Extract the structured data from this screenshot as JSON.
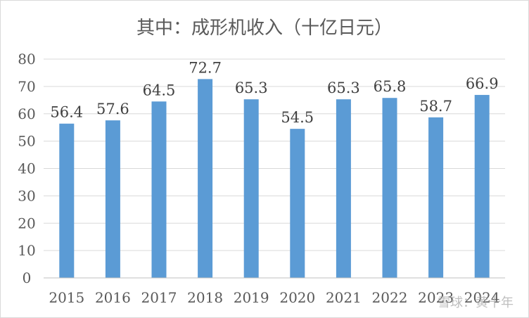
{
  "chart_data": {
    "type": "bar",
    "title": "其中：成形机收入（十亿日元）",
    "categories": [
      "2015",
      "2016",
      "2017",
      "2018",
      "2019",
      "2020",
      "2021",
      "2022",
      "2023",
      "2024"
    ],
    "values": [
      56.4,
      57.6,
      64.5,
      72.7,
      65.3,
      54.5,
      65.3,
      65.8,
      58.7,
      66.9
    ],
    "data_labels": [
      "56.4",
      "57.6",
      "64.5",
      "72.7",
      "65.3",
      "54.5",
      "65.3",
      "65.8",
      "58.7",
      "66.9"
    ],
    "ylim": [
      0,
      80
    ],
    "yticks": [
      0,
      10,
      20,
      30,
      40,
      50,
      60,
      70,
      80
    ],
    "bar_color": "#5b9bd5",
    "grid": true,
    "legend": "none"
  },
  "watermark": "雪球：黄十年"
}
